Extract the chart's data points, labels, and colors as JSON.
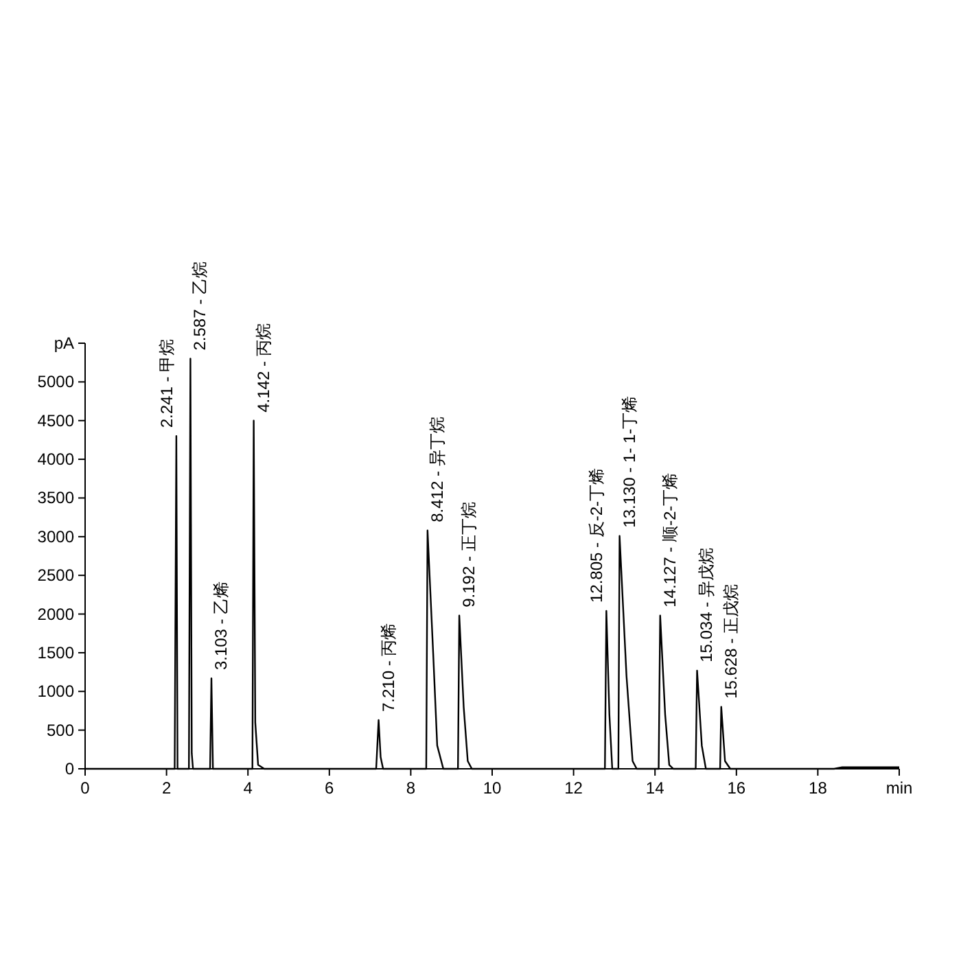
{
  "chart_data": {
    "type": "line",
    "xlabel": "min",
    "ylabel": "pA",
    "color": "#000000",
    "xlim": [
      0,
      20
    ],
    "ylim": [
      0,
      5500
    ],
    "xticks": [
      0,
      2,
      4,
      6,
      8,
      10,
      12,
      14,
      16,
      18
    ],
    "yticks": [
      0,
      500,
      1000,
      1500,
      2000,
      2500,
      3000,
      3500,
      4000,
      4500,
      5000
    ],
    "x": [
      0,
      2.2,
      2.241,
      2.27,
      2.55,
      2.587,
      2.62,
      2.65,
      3.07,
      3.103,
      3.14,
      4.11,
      4.142,
      4.18,
      4.25,
      4.4,
      7.15,
      7.21,
      7.26,
      7.32,
      8.38,
      8.412,
      8.55,
      8.65,
      8.8,
      9.16,
      9.192,
      9.3,
      9.4,
      9.5,
      12.77,
      12.805,
      12.88,
      12.95,
      13.1,
      13.13,
      13.3,
      13.45,
      13.55,
      14.09,
      14.127,
      14.25,
      14.35,
      14.45,
      15.0,
      15.034,
      15.15,
      15.25,
      15.6,
      15.628,
      15.72,
      15.85,
      18.4,
      18.6,
      20
    ],
    "values": [
      0,
      0,
      4300,
      0,
      0,
      5300,
      200,
      0,
      0,
      1170,
      0,
      0,
      4500,
      600,
      50,
      0,
      0,
      630,
      150,
      0,
      0,
      3080,
      1500,
      300,
      0,
      0,
      1980,
      800,
      100,
      0,
      0,
      2040,
      700,
      0,
      0,
      3010,
      1200,
      100,
      0,
      0,
      1980,
      700,
      50,
      0,
      0,
      1270,
      300,
      0,
      0,
      800,
      100,
      0,
      0,
      20,
      20
    ],
    "annotations": [
      {
        "text": "2.241 - 甲烷",
        "x": 2.241,
        "y": 4300
      },
      {
        "text": "2.587 - 乙烷",
        "x": 2.587,
        "y": 5300
      },
      {
        "text": "3.103 - 乙烯",
        "x": 3.103,
        "y": 1170
      },
      {
        "text": "4.142 - 丙烷",
        "x": 4.142,
        "y": 4500
      },
      {
        "text": "7.210 - 丙烯",
        "x": 7.21,
        "y": 630
      },
      {
        "text": "8.412 - 异丁烷",
        "x": 8.412,
        "y": 3080
      },
      {
        "text": "9.192 - 正丁烷",
        "x": 9.192,
        "y": 1980
      },
      {
        "text": "12.805 - 反-2-丁烯",
        "x": 12.805,
        "y": 2040
      },
      {
        "text": "13.130 - 1- 1-丁烯",
        "x": 13.13,
        "y": 3010
      },
      {
        "text": "14.127 - 顺-2-丁烯",
        "x": 14.127,
        "y": 1980
      },
      {
        "text": "15.034 - 异戊烷",
        "x": 15.034,
        "y": 1270
      },
      {
        "text": "15.628 - 正戊烷",
        "x": 15.628,
        "y": 800
      }
    ]
  }
}
